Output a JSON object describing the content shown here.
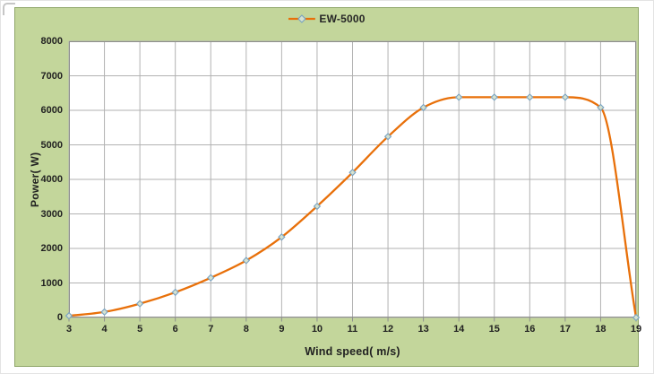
{
  "chart_data": {
    "type": "line",
    "title": "",
    "xlabel": "Wind speed( m/s)",
    "ylabel": "Power( W)",
    "x": [
      3,
      4,
      5,
      6,
      7,
      8,
      9,
      10,
      11,
      12,
      13,
      14,
      15,
      16,
      17,
      18,
      19
    ],
    "series": [
      {
        "name": "EW-5000",
        "values": [
          50,
          160,
          400,
          730,
          1150,
          1650,
          2330,
          3220,
          4200,
          5240,
          6080,
          6380,
          6380,
          6380,
          6380,
          6080,
          0
        ]
      }
    ],
    "xlim": [
      3,
      19
    ],
    "ylim": [
      0,
      8000
    ],
    "yticks": [
      0,
      1000,
      2000,
      3000,
      4000,
      5000,
      6000,
      7000,
      8000
    ],
    "xticks": [
      3,
      4,
      5,
      6,
      7,
      8,
      9,
      10,
      11,
      12,
      13,
      14,
      15,
      16,
      17,
      18,
      19
    ],
    "grid": true,
    "legend_position": "top-center",
    "marker": "diamond"
  },
  "colors": {
    "chart_background": "#c3d69b",
    "chart_border": "#8fa668",
    "plot_background": "#ffffff",
    "gridline": "#b2b2b2",
    "axis": "#8e8e8e",
    "series_line": "#e8700a",
    "marker_fill": "#d6e2cf",
    "marker_stroke": "#78a2c2",
    "text": "#212121"
  }
}
